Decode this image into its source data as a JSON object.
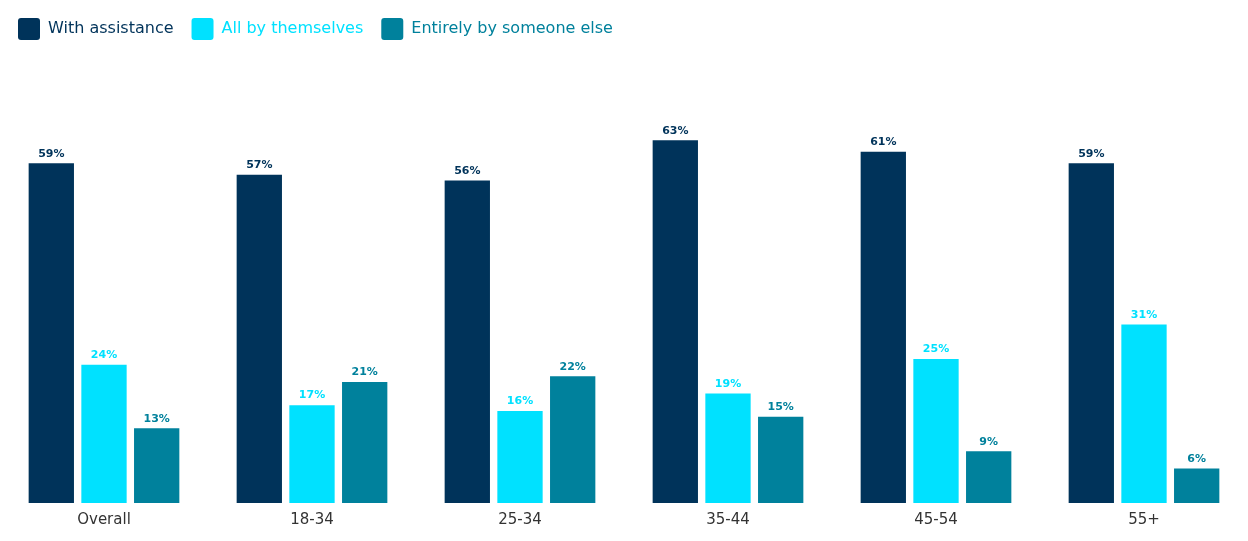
{
  "chart_data": {
    "type": "bar",
    "categories": [
      "Overall",
      "18-34",
      "25-34",
      "35-44",
      "45-54",
      "55+"
    ],
    "series": [
      {
        "name": "With assistance",
        "color": "#00335a",
        "values": [
          59,
          57,
          56,
          63,
          61,
          59
        ],
        "value_labels": [
          "59%",
          "57%",
          "56%",
          "63%",
          "61%",
          "59%"
        ]
      },
      {
        "name": "All by themselves",
        "color": "#00e1ff",
        "values": [
          24,
          17,
          16,
          19,
          25,
          31
        ],
        "value_labels": [
          "24%",
          "17%",
          "16%",
          "19%",
          "25%",
          "31%"
        ]
      },
      {
        "name": "Entirely by someone else",
        "color": "#00819c",
        "values": [
          13,
          21,
          22,
          15,
          9,
          6
        ],
        "value_labels": [
          "13%",
          "21%",
          "22%",
          "15%",
          "9%",
          "6%"
        ]
      }
    ],
    "legend": "top left",
    "grid": false
  }
}
